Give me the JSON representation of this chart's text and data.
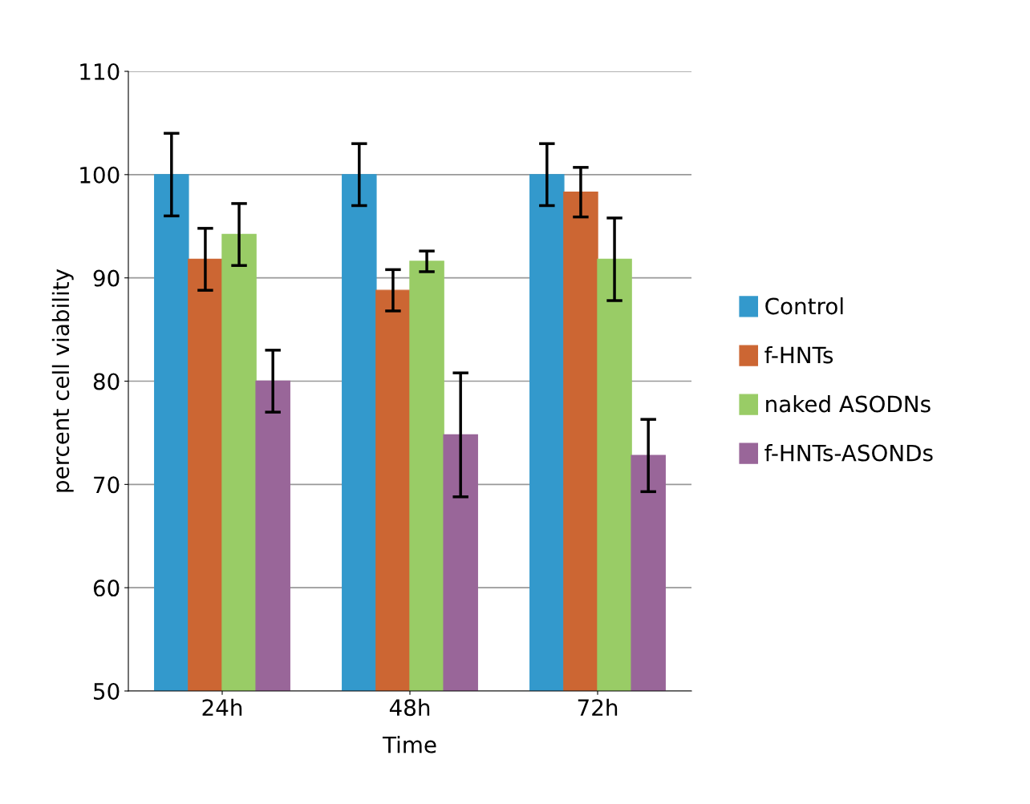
{
  "chart_data": {
    "type": "bar",
    "xlabel": "Time",
    "ylabel": "percent cell viability",
    "categories": [
      "24h",
      "48h",
      "72h"
    ],
    "series": [
      {
        "name": "Control",
        "color": "#3399cc",
        "values": [
          100,
          100,
          100
        ],
        "errors": [
          4,
          3,
          3
        ]
      },
      {
        "name": "f-HNTs",
        "color": "#cc6633",
        "values": [
          91.8,
          88.8,
          98.3
        ],
        "errors": [
          3,
          2,
          2.4
        ]
      },
      {
        "name": "naked ASODNs",
        "color": "#99cc66",
        "values": [
          94.2,
          91.6,
          91.8
        ],
        "errors": [
          3,
          1,
          4
        ]
      },
      {
        "name": "f-HNTs-ASONDs",
        "color": "#996699",
        "values": [
          80,
          74.8,
          72.8
        ],
        "errors": [
          3,
          6,
          3.5
        ]
      }
    ],
    "ylim": [
      50,
      110
    ],
    "yticks": [
      50,
      60,
      70,
      80,
      90,
      100,
      110
    ],
    "grid": "y",
    "legend": "right"
  }
}
